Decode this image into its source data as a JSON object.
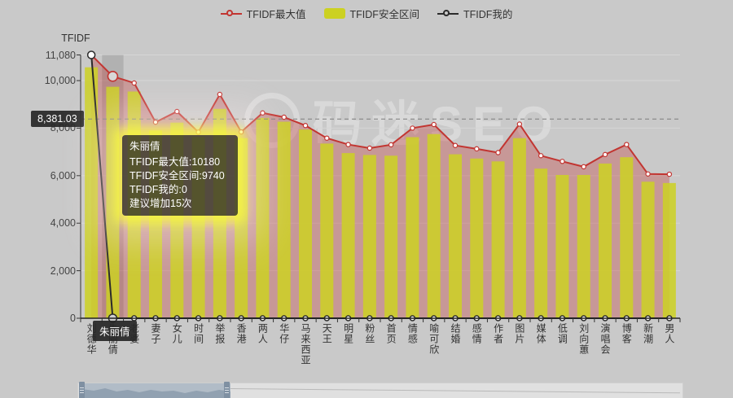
{
  "page": {
    "background": "#c9c9c9",
    "watermark_text": "码迷SEO"
  },
  "legend": {
    "items": [
      {
        "label": "TFIDF最大值",
        "type": "line",
        "color": "#c23531"
      },
      {
        "label": "TFIDF安全区间",
        "type": "bar",
        "color": "#ccd122"
      },
      {
        "label": "TFIDF我的",
        "type": "line",
        "color": "#2b2b2b"
      }
    ]
  },
  "y_axis": {
    "name": "TFIDF",
    "tick_values": [
      0,
      2000,
      4000,
      6000,
      8000,
      10000,
      11080
    ],
    "tick_labels": [
      "0",
      "2,000",
      "4,000",
      "6,000",
      "8,000",
      "10,000",
      "11,080"
    ]
  },
  "reference_line": {
    "value": 8381.03,
    "label": "8,381.03"
  },
  "x_axis": {
    "highlighted_label": "朱丽倩"
  },
  "tooltip": {
    "title": "朱丽倩",
    "lines": [
      "TFIDF最大值:10180",
      "TFIDF安全区间:9740",
      "TFIDF我的:0",
      "建议增加15次"
    ]
  },
  "chart_data": {
    "type": "bar",
    "subtype": "bar+line combo with area",
    "title": "",
    "xlabel": "",
    "ylabel": "TFIDF",
    "ylim": [
      0,
      11080
    ],
    "grid": true,
    "legend_position": "top",
    "reference_line_value": 8381.03,
    "highlighted_category_index": 1,
    "categories": [
      "刘德华",
      "朱丽倩",
      "老婆",
      "妻子",
      "女儿",
      "时间",
      "举报",
      "香港",
      "两人",
      "华仔",
      "马来西亚",
      "天王",
      "明星",
      "粉丝",
      "首页",
      "情感",
      "喻可欣",
      "结婚",
      "感情",
      "作者",
      "图片",
      "媒体",
      "低调",
      "刘向蕙",
      "演唱会",
      "博客",
      "新潮",
      "男人"
    ],
    "series": [
      {
        "name": "TFIDF最大值",
        "type": "line",
        "color": "#c23531",
        "area_color": "rgba(194,53,49,0.33)",
        "values": [
          11080,
          10180,
          9900,
          8250,
          8700,
          7830,
          9420,
          7840,
          8640,
          8460,
          8110,
          7580,
          7310,
          7160,
          7300,
          8000,
          8150,
          7270,
          7130,
          6970,
          8170,
          6840,
          6600,
          6375,
          6890,
          7310,
          6070,
          6060
        ]
      },
      {
        "name": "TFIDF安全区间",
        "type": "bar",
        "color": "#ccd122",
        "values": [
          10560,
          9740,
          9540,
          7900,
          8230,
          7630,
          8810,
          7580,
          8430,
          8270,
          7940,
          7350,
          6950,
          6870,
          6840,
          7620,
          7750,
          6900,
          6720,
          6600,
          7580,
          6295,
          6030,
          6030,
          6510,
          6775,
          5745,
          5690
        ]
      },
      {
        "name": "TFIDF我的",
        "type": "line",
        "color": "#2b2b2b",
        "values": [
          11080,
          0,
          0,
          0,
          0,
          0,
          0,
          0,
          0,
          0,
          0,
          0,
          0,
          0,
          0,
          0,
          0,
          0,
          0,
          0,
          0,
          0,
          0,
          0,
          0,
          0,
          0,
          0
        ]
      }
    ]
  }
}
